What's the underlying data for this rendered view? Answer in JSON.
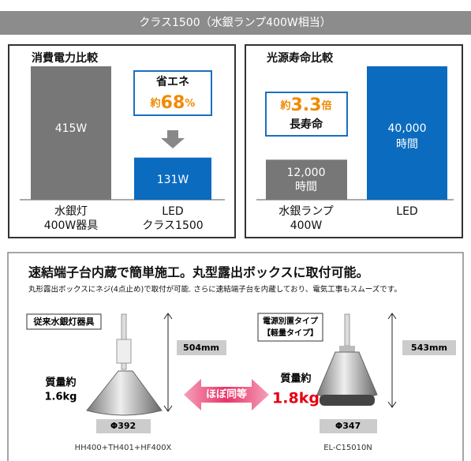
{
  "header": {
    "title": "クラス1500（水銀ランプ400W相当）"
  },
  "power": {
    "title": "消費電力比較",
    "values": [
      415,
      131
    ],
    "value_labels": [
      [
        "415W"
      ],
      [
        "131W"
      ]
    ],
    "categories": [
      [
        "水銀灯",
        "400W器具"
      ],
      [
        "LED",
        "クラス1500"
      ]
    ],
    "callout": {
      "label": "省エネ",
      "prefix": "約",
      "value": "68",
      "unit": "%"
    }
  },
  "life": {
    "title": "光源寿命比較",
    "values": [
      12000,
      40000
    ],
    "value_labels": [
      [
        "12,000",
        "時間"
      ],
      [
        "40,000",
        "時間"
      ]
    ],
    "categories": [
      [
        "水銀ランプ",
        "400W"
      ],
      [
        "LED"
      ]
    ],
    "callout": {
      "prefix": "約",
      "value": "3.3",
      "unit": "倍",
      "label": "長寿命"
    }
  },
  "feature": {
    "heading": "速結端子台内蔵で簡単施工。丸型露出ボックスに取付可能。",
    "description": "丸形露出ボックスにネジ(4点止め)で取付が可能. さらに速結端子台を内蔵しており、電気工事もスムーズです。",
    "comparison": "ほぼ同等",
    "left": {
      "tag": [
        "従来水銀灯器具"
      ],
      "height": "504mm",
      "weight_label": "質量約",
      "weight": "1.6kg",
      "diameter": "Φ392",
      "model": "HH400+TH401+HF400X"
    },
    "right": {
      "tag": [
        "電源別置タイプ",
        "【軽量タイプ】"
      ],
      "height": "543mm",
      "weight_label": "質量約",
      "weight": "1.8kg",
      "diameter": "Φ347",
      "model": "EL-C15010N"
    }
  }
}
